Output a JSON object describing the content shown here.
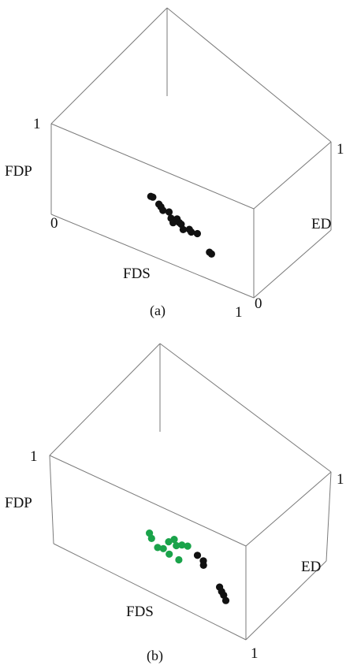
{
  "chart_data": [
    {
      "type": "scatter3d",
      "panel_label": "(a)",
      "xlabel": "FDS",
      "ylabel": "ED",
      "zlabel": "FDP",
      "xlim": [
        0,
        1
      ],
      "ylim": [
        0,
        1
      ],
      "zlim": [
        0,
        1
      ],
      "tick_labels": {
        "x_start": "0",
        "x_end": "1",
        "y_start": "0",
        "y_end": "1",
        "z_end": "1"
      },
      "grid": false,
      "legend": "none",
      "series": [
        {
          "color": "#111111",
          "points": [
            {
              "x": 0.4,
              "y": 0.24,
              "z": 0.39
            },
            {
              "x": 0.41,
              "y": 0.24,
              "z": 0.39
            },
            {
              "x": 0.44,
              "y": 0.24,
              "z": 0.34
            },
            {
              "x": 0.45,
              "y": 0.24,
              "z": 0.32
            },
            {
              "x": 0.46,
              "y": 0.24,
              "z": 0.29
            },
            {
              "x": 0.49,
              "y": 0.24,
              "z": 0.3
            },
            {
              "x": 0.5,
              "y": 0.24,
              "z": 0.24
            },
            {
              "x": 0.51,
              "y": 0.24,
              "z": 0.2
            },
            {
              "x": 0.53,
              "y": 0.24,
              "z": 0.26
            },
            {
              "x": 0.54,
              "y": 0.24,
              "z": 0.23
            },
            {
              "x": 0.55,
              "y": 0.24,
              "z": 0.22
            },
            {
              "x": 0.56,
              "y": 0.24,
              "z": 0.17
            },
            {
              "x": 0.59,
              "y": 0.24,
              "z": 0.2
            },
            {
              "x": 0.6,
              "y": 0.24,
              "z": 0.18
            },
            {
              "x": 0.63,
              "y": 0.24,
              "z": 0.19
            },
            {
              "x": 0.69,
              "y": 0.24,
              "z": 0.04
            },
            {
              "x": 0.7,
              "y": 0.24,
              "z": 0.03
            }
          ]
        }
      ]
    },
    {
      "type": "scatter3d",
      "panel_label": "(b)",
      "xlabel": "FDS",
      "ylabel": "ED",
      "zlabel": "FDP",
      "xlim": [
        0,
        1
      ],
      "ylim": [
        0,
        1
      ],
      "zlim": [
        0,
        1
      ],
      "tick_labels": {
        "x_start": "",
        "x_end": "1",
        "y_start": "",
        "y_end": "1",
        "z_end": "1"
      },
      "grid": false,
      "legend": "none",
      "series": [
        {
          "color": "#1aa34a",
          "points": [
            {
              "x": 0.4,
              "y": 0.24,
              "z": 0.38
            },
            {
              "x": 0.41,
              "y": 0.24,
              "z": 0.33
            },
            {
              "x": 0.44,
              "y": 0.24,
              "z": 0.26
            },
            {
              "x": 0.47,
              "y": 0.24,
              "z": 0.28
            },
            {
              "x": 0.5,
              "y": 0.24,
              "z": 0.39
            },
            {
              "x": 0.5,
              "y": 0.24,
              "z": 0.25
            },
            {
              "x": 0.53,
              "y": 0.24,
              "z": 0.45
            },
            {
              "x": 0.54,
              "y": 0.24,
              "z": 0.39
            },
            {
              "x": 0.55,
              "y": 0.24,
              "z": 0.24
            },
            {
              "x": 0.57,
              "y": 0.24,
              "z": 0.43
            },
            {
              "x": 0.6,
              "y": 0.24,
              "z": 0.45
            }
          ]
        },
        {
          "color": "#111111",
          "points": [
            {
              "x": 0.65,
              "y": 0.24,
              "z": 0.4
            },
            {
              "x": 0.68,
              "y": 0.24,
              "z": 0.37
            },
            {
              "x": 0.68,
              "y": 0.24,
              "z": 0.32
            },
            {
              "x": 0.76,
              "y": 0.24,
              "z": 0.16
            },
            {
              "x": 0.77,
              "y": 0.24,
              "z": 0.12
            },
            {
              "x": 0.78,
              "y": 0.24,
              "z": 0.09
            },
            {
              "x": 0.79,
              "y": 0.24,
              "z": 0.04
            }
          ]
        }
      ]
    }
  ]
}
